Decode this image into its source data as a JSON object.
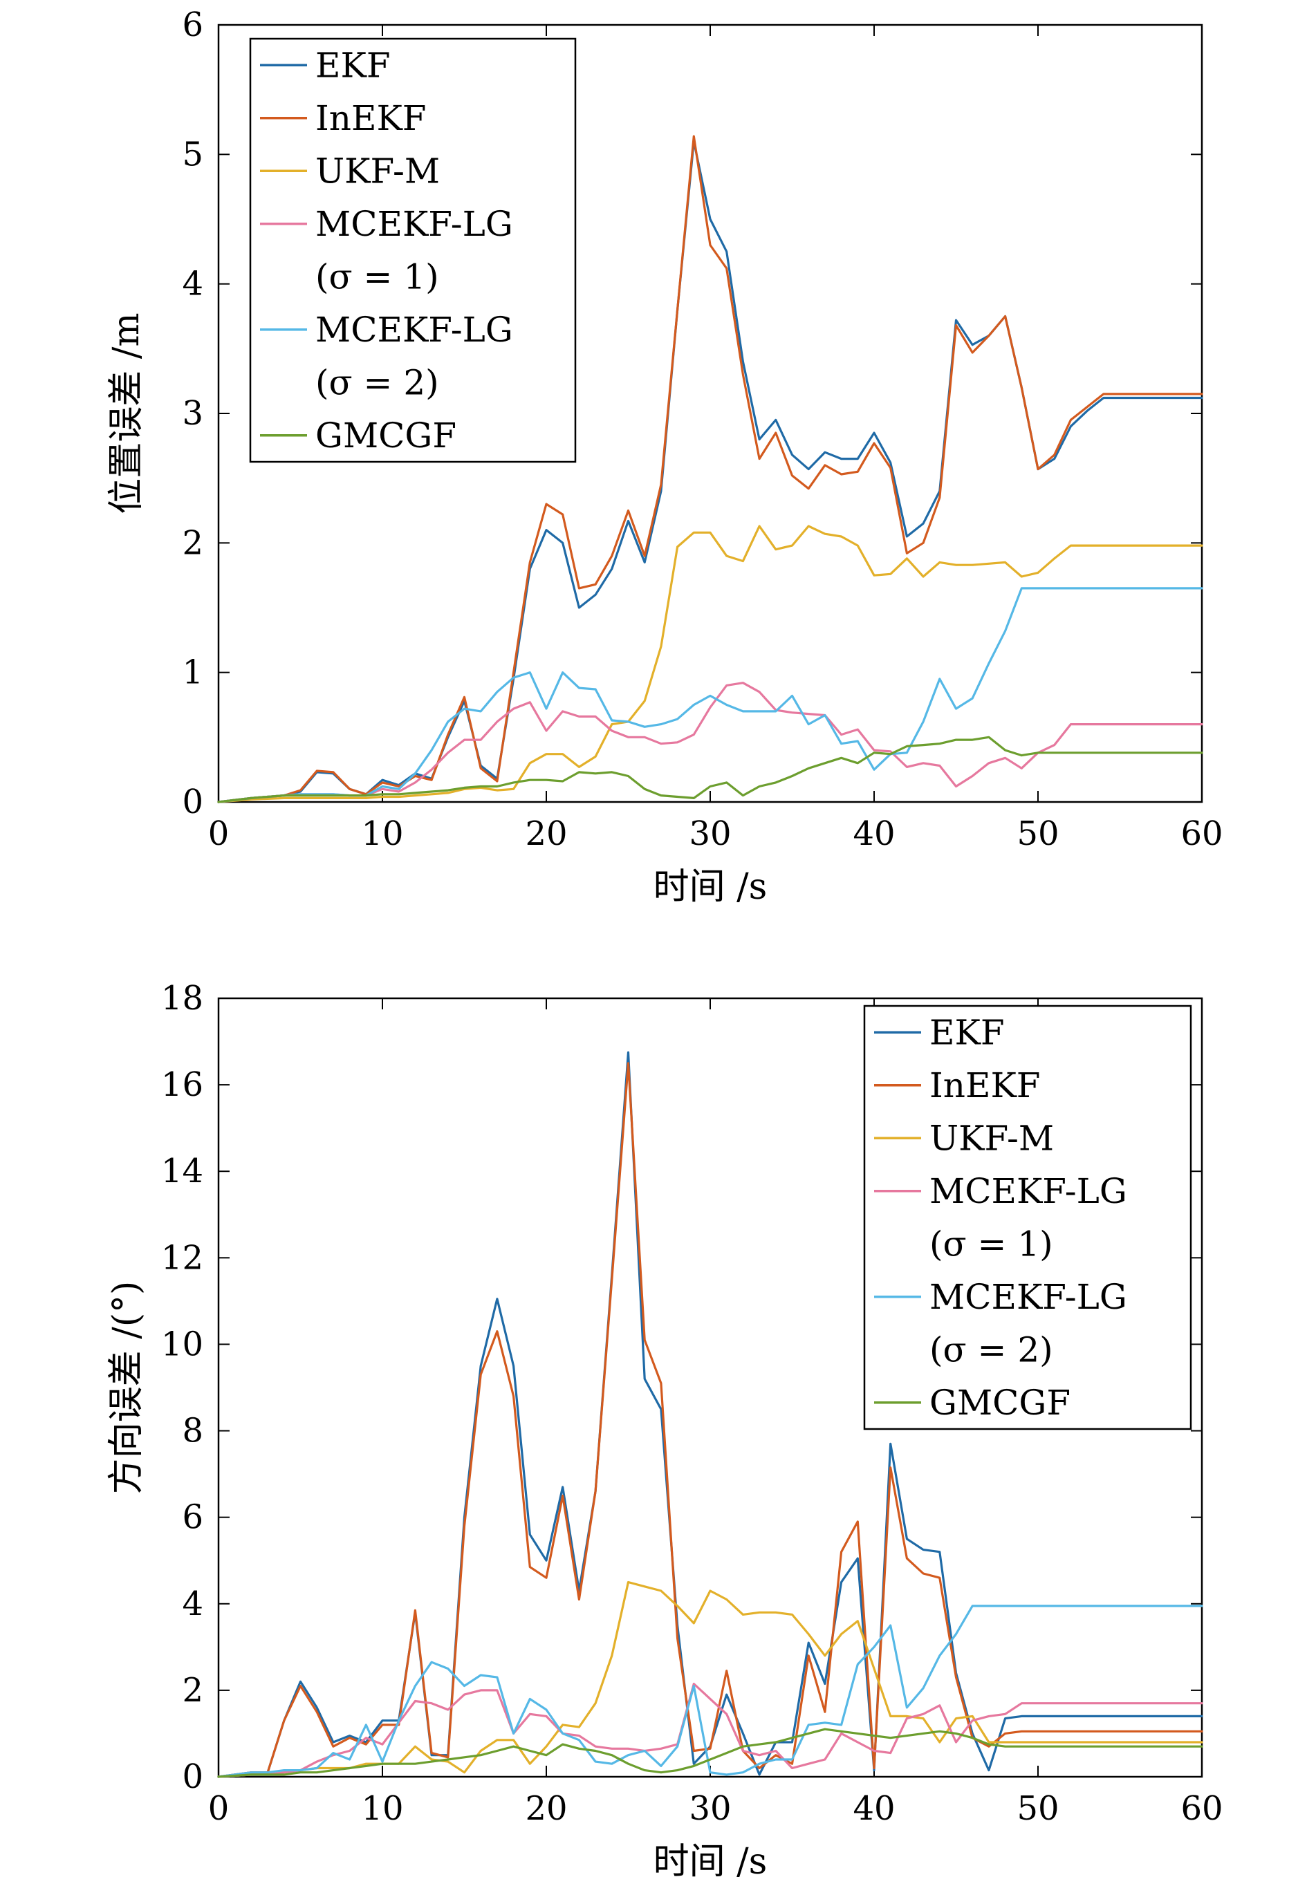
{
  "chart_data": [
    {
      "type": "line",
      "xlabel": "时间 /s",
      "ylabel": "位置误差 /m",
      "xlim": [
        0,
        60
      ],
      "ylim": [
        0,
        6
      ],
      "x_ticks": [
        0,
        10,
        20,
        30,
        40,
        50,
        60
      ],
      "y_ticks": [
        0,
        1,
        2,
        3,
        4,
        5,
        6
      ],
      "grid": false,
      "legend_position": "top-left",
      "legend_entries": [
        "EKF",
        "InEKF",
        "UKF-M",
        "MCEKF-LG",
        "(σ = 1)",
        "MCEKF-LG",
        "(σ = 2)",
        "GMCGF"
      ],
      "x": [
        0,
        2,
        4,
        5,
        6,
        7,
        8,
        9,
        10,
        11,
        12,
        13,
        14,
        15,
        16,
        17,
        18,
        19,
        20,
        21,
        22,
        23,
        24,
        25,
        26,
        27,
        28,
        29,
        30,
        31,
        32,
        33,
        34,
        35,
        36,
        37,
        38,
        39,
        40,
        41,
        42,
        43,
        44,
        45,
        46,
        47,
        48,
        49,
        50,
        51,
        52,
        53,
        54,
        55,
        56,
        57,
        58,
        59,
        60
      ],
      "series": [
        {
          "name": "EKF",
          "color": "#1f6aa6",
          "values": [
            0,
            0.03,
            0.05,
            0.08,
            0.23,
            0.22,
            0.1,
            0.06,
            0.17,
            0.13,
            0.22,
            0.18,
            0.5,
            0.78,
            0.28,
            0.18,
            0.95,
            1.8,
            2.1,
            2.0,
            1.5,
            1.6,
            1.8,
            2.17,
            1.85,
            2.4,
            3.8,
            5.1,
            4.5,
            4.25,
            3.4,
            2.8,
            2.95,
            2.68,
            2.57,
            2.7,
            2.65,
            2.65,
            2.85,
            2.62,
            2.05,
            2.15,
            2.4,
            3.72,
            3.53,
            3.6,
            3.75,
            3.2,
            2.57,
            2.65,
            2.9,
            3.02,
            3.12,
            3.12,
            3.12,
            3.12,
            3.12,
            3.12,
            3.12
          ]
        },
        {
          "name": "InEKF",
          "color": "#d35a1e",
          "values": [
            0,
            0.03,
            0.05,
            0.09,
            0.24,
            0.23,
            0.1,
            0.06,
            0.15,
            0.12,
            0.2,
            0.17,
            0.52,
            0.81,
            0.26,
            0.16,
            1.0,
            1.85,
            2.3,
            2.22,
            1.65,
            1.68,
            1.9,
            2.25,
            1.9,
            2.45,
            3.8,
            5.14,
            4.3,
            4.12,
            3.3,
            2.65,
            2.85,
            2.52,
            2.42,
            2.6,
            2.53,
            2.55,
            2.77,
            2.58,
            1.92,
            2.0,
            2.35,
            3.68,
            3.47,
            3.6,
            3.75,
            3.2,
            2.57,
            2.68,
            2.95,
            3.05,
            3.15,
            3.15,
            3.15,
            3.15,
            3.15,
            3.15,
            3.15
          ]
        },
        {
          "name": "UKF-M",
          "color": "#e3b02a",
          "values": [
            0,
            0.02,
            0.03,
            0.03,
            0.03,
            0.03,
            0.03,
            0.03,
            0.04,
            0.04,
            0.05,
            0.06,
            0.07,
            0.1,
            0.11,
            0.09,
            0.1,
            0.3,
            0.37,
            0.37,
            0.27,
            0.35,
            0.6,
            0.62,
            0.78,
            1.2,
            1.97,
            2.08,
            2.08,
            1.9,
            1.86,
            2.13,
            1.95,
            1.98,
            2.13,
            2.07,
            2.05,
            1.98,
            1.75,
            1.76,
            1.88,
            1.74,
            1.85,
            1.83,
            1.83,
            1.84,
            1.85,
            1.74,
            1.77,
            1.88,
            1.98,
            1.98,
            1.98,
            1.98,
            1.98,
            1.98,
            1.98,
            1.98,
            1.98
          ]
        },
        {
          "name": "MCEKF-LG (σ = 1)",
          "color": "#e6789e",
          "values": [
            0,
            0.03,
            0.05,
            0.06,
            0.06,
            0.06,
            0.05,
            0.05,
            0.1,
            0.08,
            0.15,
            0.25,
            0.38,
            0.48,
            0.48,
            0.62,
            0.72,
            0.77,
            0.55,
            0.7,
            0.66,
            0.66,
            0.55,
            0.5,
            0.5,
            0.45,
            0.46,
            0.52,
            0.73,
            0.9,
            0.92,
            0.85,
            0.71,
            0.69,
            0.68,
            0.67,
            0.52,
            0.56,
            0.4,
            0.39,
            0.27,
            0.3,
            0.28,
            0.12,
            0.2,
            0.3,
            0.34,
            0.26,
            0.38,
            0.44,
            0.6,
            0.6,
            0.6,
            0.6,
            0.6,
            0.6,
            0.6,
            0.6,
            0.6
          ]
        },
        {
          "name": "MCEKF-LG (σ = 2)",
          "color": "#55b8e6",
          "values": [
            0,
            0.03,
            0.05,
            0.06,
            0.06,
            0.06,
            0.05,
            0.05,
            0.12,
            0.1,
            0.22,
            0.4,
            0.62,
            0.72,
            0.7,
            0.85,
            0.96,
            1.0,
            0.72,
            1.0,
            0.88,
            0.87,
            0.63,
            0.62,
            0.58,
            0.6,
            0.64,
            0.75,
            0.82,
            0.75,
            0.7,
            0.7,
            0.7,
            0.82,
            0.6,
            0.67,
            0.45,
            0.47,
            0.25,
            0.37,
            0.38,
            0.62,
            0.95,
            0.72,
            0.8,
            1.07,
            1.32,
            1.65,
            1.65,
            1.65,
            1.65,
            1.65,
            1.65,
            1.65,
            1.65,
            1.65,
            1.65,
            1.65,
            1.65
          ]
        },
        {
          "name": "GMCGF",
          "color": "#6c9e2e",
          "values": [
            0,
            0.03,
            0.05,
            0.05,
            0.05,
            0.05,
            0.05,
            0.05,
            0.06,
            0.06,
            0.07,
            0.08,
            0.09,
            0.11,
            0.12,
            0.12,
            0.15,
            0.17,
            0.17,
            0.16,
            0.23,
            0.22,
            0.23,
            0.2,
            0.1,
            0.05,
            0.04,
            0.03,
            0.12,
            0.15,
            0.05,
            0.12,
            0.15,
            0.2,
            0.26,
            0.3,
            0.34,
            0.3,
            0.38,
            0.37,
            0.43,
            0.44,
            0.45,
            0.48,
            0.48,
            0.5,
            0.4,
            0.36,
            0.38,
            0.38,
            0.38,
            0.38,
            0.38,
            0.38,
            0.38,
            0.38,
            0.38,
            0.38,
            0.38
          ]
        }
      ]
    },
    {
      "type": "line",
      "xlabel": "时间 /s",
      "ylabel": "方向误差 /(°)",
      "xlim": [
        0,
        60
      ],
      "ylim": [
        0,
        18
      ],
      "x_ticks": [
        0,
        10,
        20,
        30,
        40,
        50,
        60
      ],
      "y_ticks": [
        0,
        2,
        4,
        6,
        8,
        10,
        12,
        14,
        16,
        18
      ],
      "grid": false,
      "legend_position": "top-right",
      "legend_entries": [
        "EKF",
        "InEKF",
        "UKF-M",
        "MCEKF-LG",
        "(σ = 1)",
        "MCEKF-LG",
        "(σ = 2)",
        "GMCGF"
      ],
      "x": [
        0,
        2,
        3,
        4,
        5,
        6,
        7,
        8,
        9,
        10,
        11,
        12,
        13,
        14,
        15,
        16,
        17,
        18,
        19,
        20,
        21,
        22,
        23,
        24,
        25,
        26,
        27,
        28,
        29,
        30,
        31,
        32,
        33,
        34,
        35,
        36,
        37,
        38,
        39,
        40,
        41,
        42,
        43,
        44,
        45,
        46,
        47,
        48,
        49,
        50,
        51,
        52,
        53,
        54,
        55,
        56,
        57,
        58,
        59,
        60
      ],
      "series": [
        {
          "name": "EKF",
          "color": "#1f6aa6",
          "values": [
            0,
            0.1,
            0.1,
            1.3,
            2.2,
            1.6,
            0.8,
            0.95,
            0.8,
            1.3,
            1.3,
            3.8,
            0.5,
            0.5,
            6.0,
            9.5,
            11.05,
            9.5,
            5.6,
            5.0,
            6.7,
            4.3,
            6.6,
            11.6,
            16.75,
            9.2,
            8.5,
            3.5,
            0.3,
            0.7,
            1.9,
            1.0,
            0.05,
            0.8,
            0.8,
            3.1,
            2.15,
            4.5,
            5.05,
            0.15,
            7.7,
            5.5,
            5.25,
            5.2,
            2.4,
            1.0,
            0.15,
            1.35,
            1.4,
            1.4,
            1.4,
            1.4,
            1.4,
            1.4,
            1.4,
            1.4,
            1.4,
            1.4,
            1.4,
            1.4
          ]
        },
        {
          "name": "InEKF",
          "color": "#d35a1e",
          "values": [
            0,
            0.1,
            0.1,
            1.3,
            2.1,
            1.5,
            0.7,
            0.9,
            0.75,
            1.2,
            1.2,
            3.85,
            0.55,
            0.45,
            5.8,
            9.3,
            10.3,
            8.8,
            4.85,
            4.6,
            6.5,
            4.1,
            6.6,
            11.5,
            16.5,
            10.1,
            9.1,
            3.2,
            0.6,
            0.65,
            2.45,
            0.6,
            0.2,
            0.5,
            0.3,
            2.8,
            1.5,
            5.2,
            5.9,
            0.2,
            7.15,
            5.05,
            4.7,
            4.6,
            2.3,
            0.9,
            0.7,
            1.0,
            1.05,
            1.05,
            1.05,
            1.05,
            1.05,
            1.05,
            1.05,
            1.05,
            1.05,
            1.05,
            1.05,
            1.05
          ]
        },
        {
          "name": "UKF-M",
          "color": "#e3b02a",
          "values": [
            0,
            0.05,
            0.05,
            0.1,
            0.15,
            0.2,
            0.2,
            0.2,
            0.3,
            0.3,
            0.3,
            0.7,
            0.4,
            0.35,
            0.1,
            0.6,
            0.85,
            0.85,
            0.3,
            0.7,
            1.2,
            1.15,
            1.7,
            2.8,
            4.5,
            4.4,
            4.3,
            3.95,
            3.55,
            4.3,
            4.1,
            3.75,
            3.8,
            3.8,
            3.75,
            3.3,
            2.8,
            3.3,
            3.6,
            2.5,
            1.4,
            1.4,
            1.35,
            0.8,
            1.35,
            1.4,
            0.8,
            0.8,
            0.8,
            0.8,
            0.8,
            0.8,
            0.8,
            0.8,
            0.8,
            0.8,
            0.8,
            0.8,
            0.8,
            0.8
          ]
        },
        {
          "name": "MCEKF-LG (σ = 1)",
          "color": "#e6789e",
          "values": [
            0,
            0.05,
            0.05,
            0.1,
            0.15,
            0.35,
            0.5,
            0.6,
            0.9,
            0.75,
            1.25,
            1.75,
            1.7,
            1.55,
            1.9,
            2.0,
            2.0,
            1.0,
            1.45,
            1.4,
            1.0,
            0.95,
            0.7,
            0.65,
            0.65,
            0.6,
            0.65,
            0.75,
            2.15,
            1.8,
            1.45,
            0.6,
            0.5,
            0.6,
            0.2,
            0.3,
            0.4,
            1.0,
            0.8,
            0.6,
            0.55,
            1.35,
            1.45,
            1.65,
            0.8,
            1.3,
            1.4,
            1.45,
            1.7,
            1.7,
            1.7,
            1.7,
            1.7,
            1.7,
            1.7,
            1.7,
            1.7,
            1.7,
            1.7,
            1.7
          ]
        },
        {
          "name": "MCEKF-LG (σ = 2)",
          "color": "#55b8e6",
          "values": [
            0,
            0.1,
            0.1,
            0.15,
            0.15,
            0.2,
            0.55,
            0.4,
            1.2,
            0.35,
            1.3,
            2.1,
            2.65,
            2.5,
            2.1,
            2.35,
            2.3,
            1.0,
            1.8,
            1.55,
            1.0,
            0.85,
            0.35,
            0.3,
            0.5,
            0.6,
            0.25,
            0.7,
            2.1,
            0.1,
            0.05,
            0.1,
            0.3,
            0.4,
            0.4,
            1.2,
            1.25,
            1.2,
            2.6,
            3.0,
            3.5,
            1.6,
            2.05,
            2.8,
            3.3,
            3.95,
            3.95,
            3.95,
            3.95,
            3.95,
            3.95,
            3.95,
            3.95,
            3.95,
            3.95,
            3.95,
            3.95,
            3.95,
            3.95,
            3.95
          ]
        },
        {
          "name": "GMCGF",
          "color": "#6c9e2e",
          "values": [
            0,
            0.05,
            0.05,
            0.05,
            0.1,
            0.1,
            0.15,
            0.2,
            0.25,
            0.3,
            0.3,
            0.3,
            0.35,
            0.4,
            0.45,
            0.5,
            0.6,
            0.7,
            0.6,
            0.5,
            0.75,
            0.65,
            0.6,
            0.5,
            0.3,
            0.15,
            0.1,
            0.15,
            0.25,
            0.4,
            0.55,
            0.7,
            0.75,
            0.8,
            0.9,
            1.0,
            1.1,
            1.05,
            1.0,
            0.95,
            0.9,
            0.95,
            1.0,
            1.05,
            1.0,
            0.9,
            0.75,
            0.7,
            0.7,
            0.7,
            0.7,
            0.7,
            0.7,
            0.7,
            0.7,
            0.7,
            0.7,
            0.7,
            0.7,
            0.7
          ]
        }
      ]
    }
  ]
}
